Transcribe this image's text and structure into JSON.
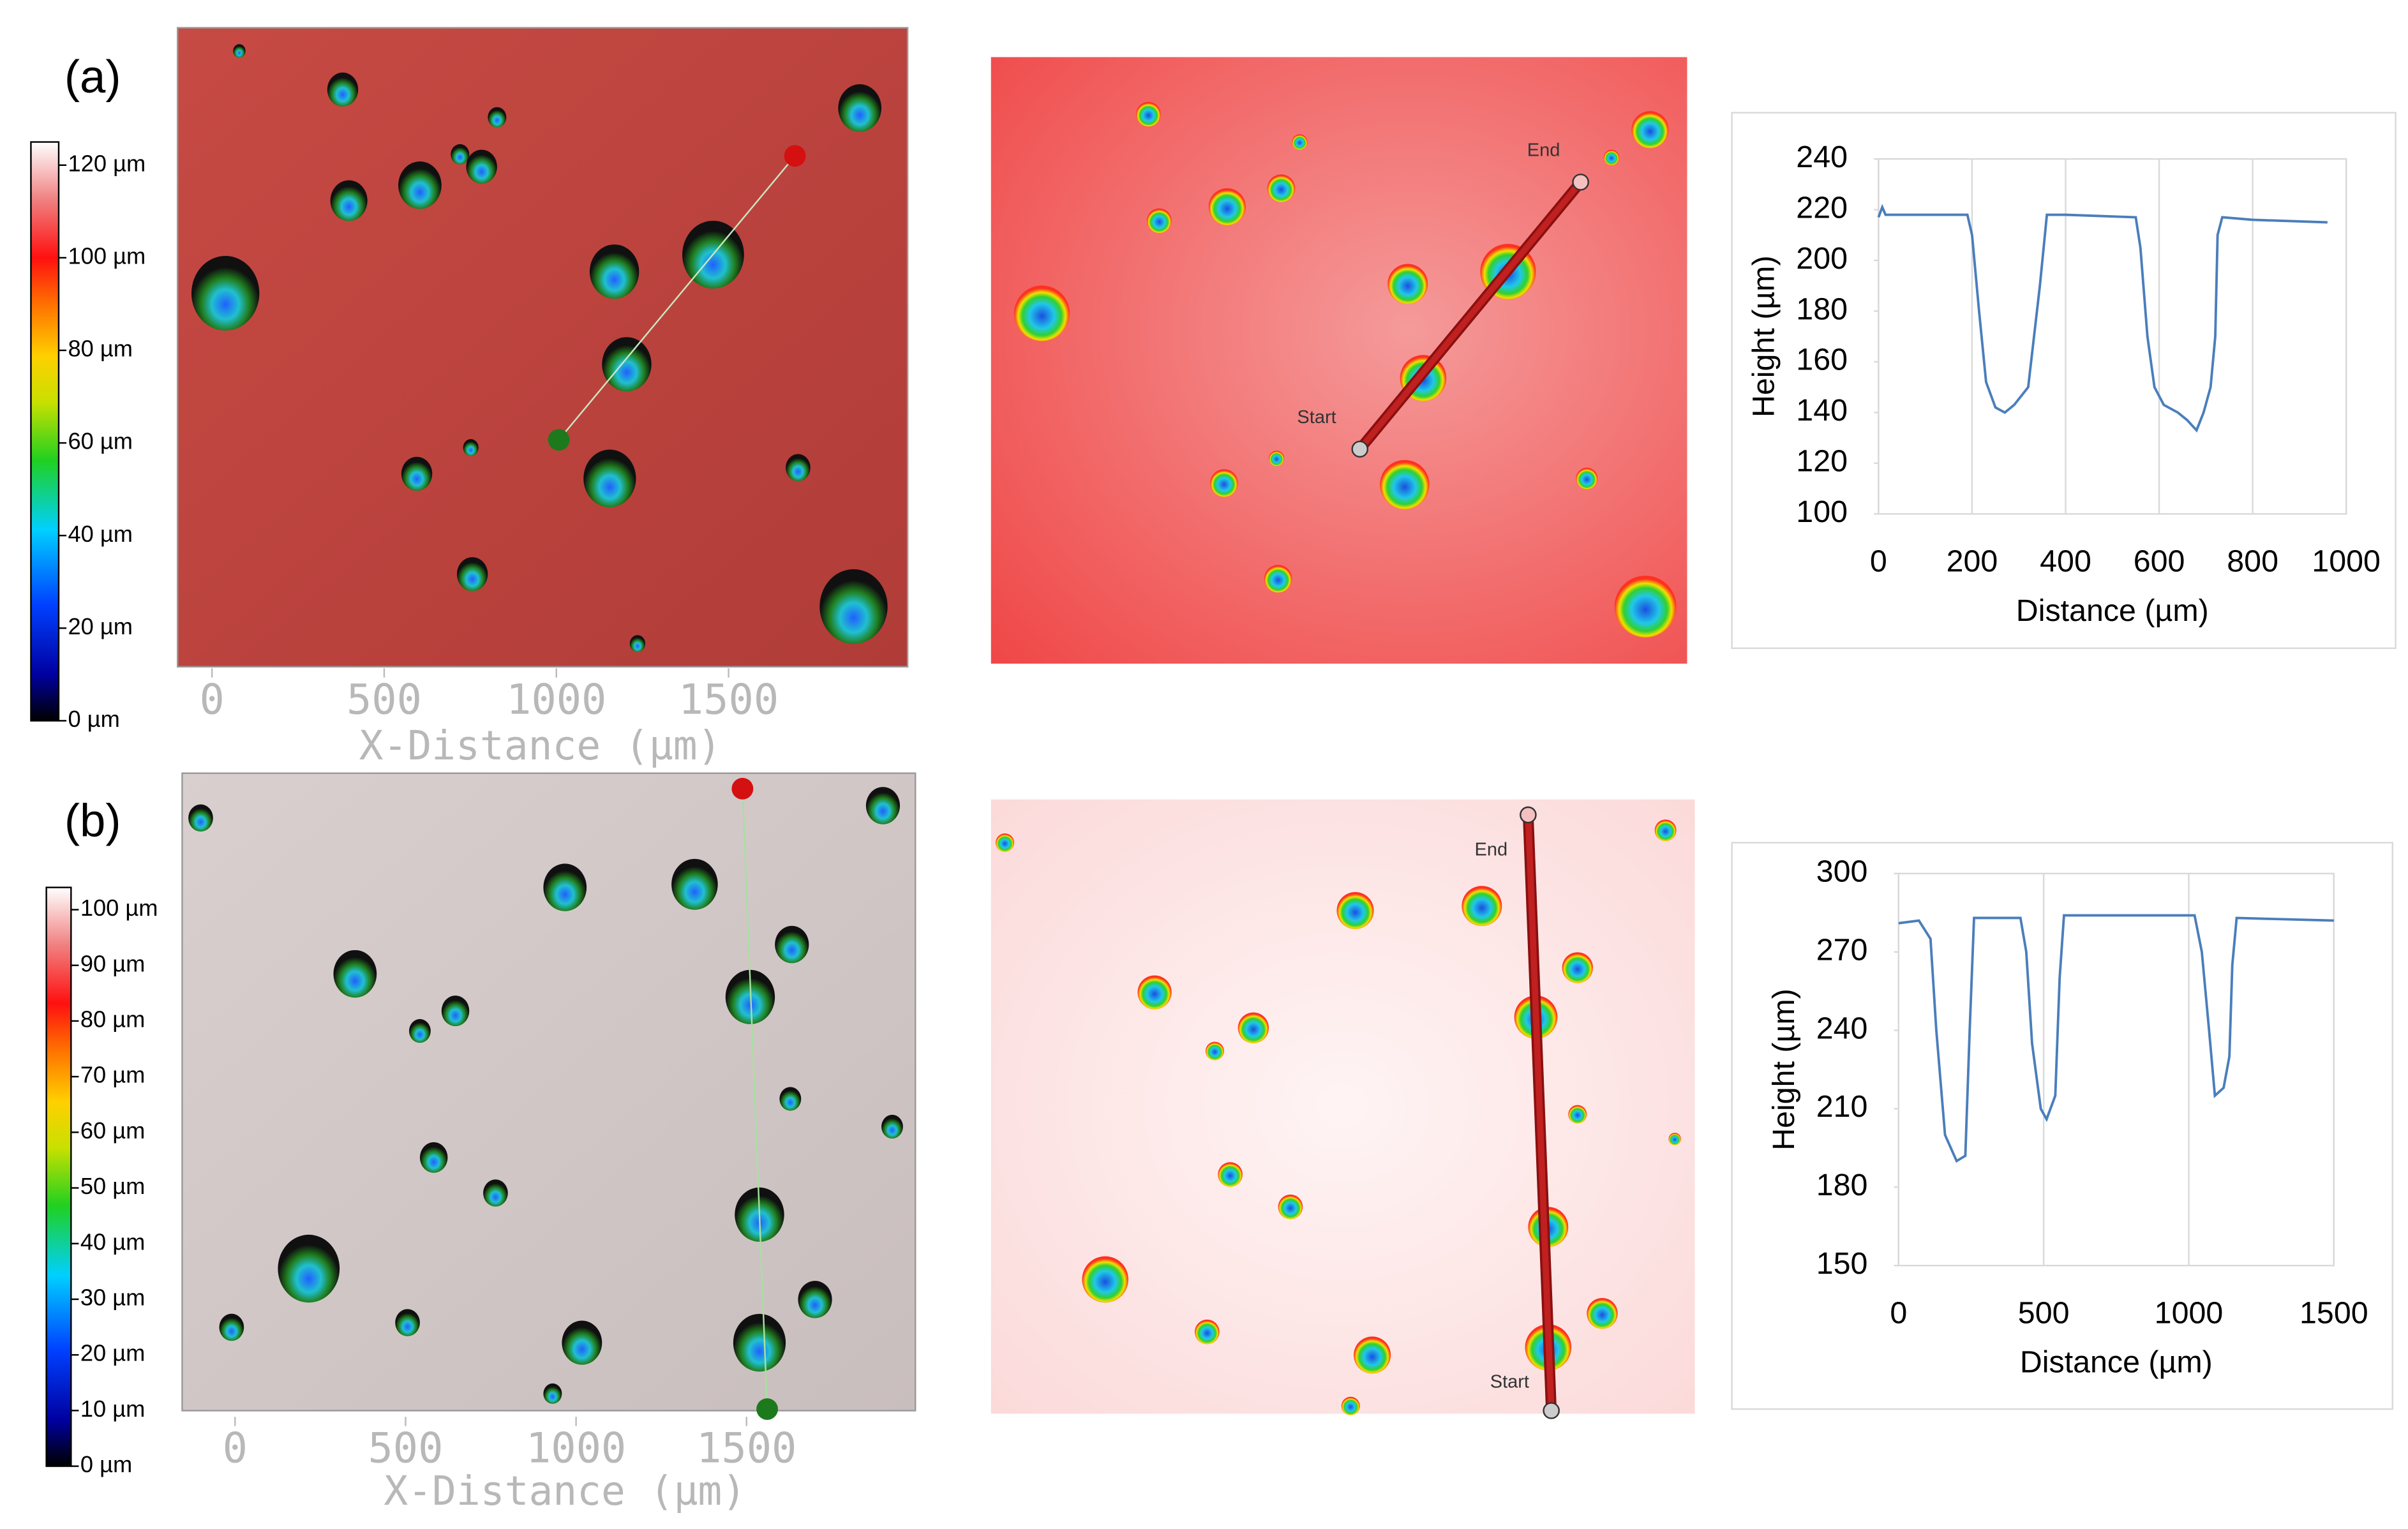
{
  "panels": [
    {
      "label": "(a)",
      "colorbar": {
        "lim": [
          0,
          125
        ],
        "ticks": [
          {
            "value": 0,
            "label": "0 µm"
          },
          {
            "value": 20,
            "label": "20 µm"
          },
          {
            "value": 40,
            "label": "40 µm"
          },
          {
            "value": 60,
            "label": "60 µm"
          },
          {
            "value": 80,
            "label": "80 µm"
          },
          {
            "value": 100,
            "label": "100 µm"
          },
          {
            "value": 120,
            "label": "120 µm"
          }
        ]
      },
      "image_axis": {
        "title": "X-Distance (µm)",
        "xlim": [
          -100,
          2020
        ],
        "xticks": [
          0,
          500,
          1000,
          1500
        ]
      },
      "profile_markers": {
        "start": "Start",
        "end": "End"
      }
    },
    {
      "label": "(b)",
      "colorbar": {
        "lim": [
          0,
          104
        ],
        "ticks": [
          {
            "value": 0,
            "label": "0 µm"
          },
          {
            "value": 10,
            "label": "10 µm"
          },
          {
            "value": 20,
            "label": "20 µm"
          },
          {
            "value": 30,
            "label": "30 µm"
          },
          {
            "value": 40,
            "label": "40 µm"
          },
          {
            "value": 50,
            "label": "50 µm"
          },
          {
            "value": 60,
            "label": "60 µm"
          },
          {
            "value": 70,
            "label": "70 µm"
          },
          {
            "value": 80,
            "label": "80 µm"
          },
          {
            "value": 90,
            "label": "90 µm"
          },
          {
            "value": 100,
            "label": "100 µm"
          }
        ]
      },
      "image_axis": {
        "title": "X-Distance (µm)",
        "xlim": [
          -155,
          1995
        ],
        "xticks": [
          0,
          500,
          1000,
          1500
        ]
      },
      "profile_markers": {
        "start": "Start",
        "end": "End"
      }
    }
  ],
  "chart_data": [
    {
      "type": "line",
      "x_label": "Distance (µm)",
      "y_label": "Height (µm)",
      "x": [
        0,
        8,
        15,
        190,
        200,
        215,
        230,
        250,
        270,
        290,
        320,
        345,
        360,
        400,
        550,
        560,
        575,
        590,
        610,
        640,
        660,
        680,
        695,
        710,
        720,
        725,
        735,
        800,
        960
      ],
      "values": [
        217,
        221,
        218,
        218,
        210,
        180,
        152,
        142,
        140,
        143,
        150,
        190,
        218,
        218,
        217,
        205,
        170,
        150,
        143,
        140,
        137,
        133,
        140,
        150,
        170,
        210,
        217,
        216,
        215
      ],
      "color": "#4a7ebb",
      "xlim": [
        0,
        1000
      ],
      "xticks": [
        0,
        200,
        400,
        600,
        800,
        1000
      ],
      "ylim": [
        100,
        240
      ],
      "yticks": [
        100,
        120,
        140,
        160,
        180,
        200,
        220,
        240
      ],
      "grid": "x"
    },
    {
      "type": "line",
      "x_label": "Distance (µm)",
      "y_label": "Height (µm)",
      "x": [
        0,
        70,
        110,
        130,
        160,
        200,
        230,
        245,
        260,
        420,
        440,
        460,
        490,
        510,
        540,
        555,
        570,
        1020,
        1045,
        1070,
        1090,
        1120,
        1140,
        1150,
        1165,
        1500
      ],
      "values": [
        281,
        282,
        275,
        240,
        200,
        190,
        192,
        240,
        283,
        283,
        270,
        235,
        210,
        206,
        215,
        260,
        284,
        284,
        270,
        240,
        215,
        218,
        230,
        265,
        283,
        282
      ],
      "color": "#4a7ebb",
      "xlim": [
        0,
        1500
      ],
      "xticks": [
        0,
        500,
        1000,
        1500
      ],
      "ylim": [
        150,
        300
      ],
      "yticks": [
        150,
        180,
        210,
        240,
        270,
        300
      ],
      "grid": "x"
    }
  ]
}
